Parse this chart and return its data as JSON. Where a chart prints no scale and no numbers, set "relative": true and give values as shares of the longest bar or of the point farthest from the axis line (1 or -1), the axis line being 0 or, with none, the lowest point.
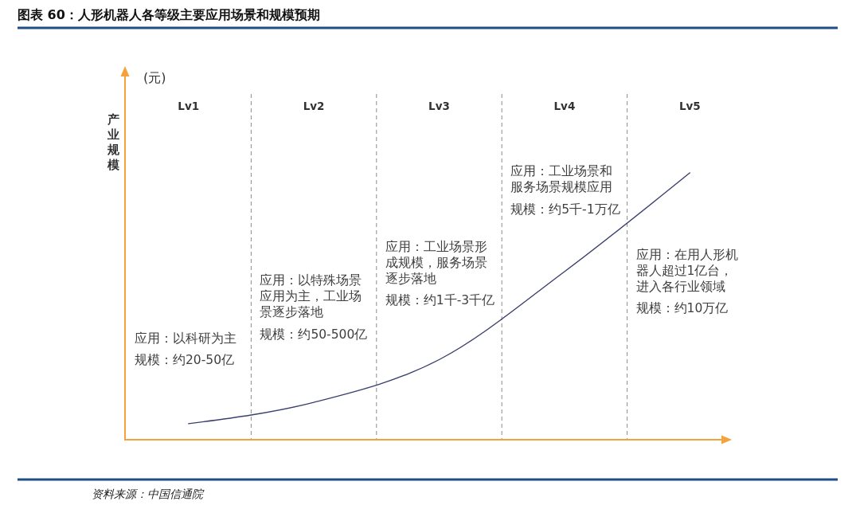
{
  "chart_data": {
    "type": "line",
    "title": "图表 60：人形机器人各等级主要应用场景和规模预期",
    "ylabel": "产业规模",
    "categories": [
      "Lv1",
      "Lv2",
      "Lv3",
      "Lv4",
      "Lv5"
    ],
    "series": [
      {
        "color": "#3b3f6e",
        "values": [
          0.06,
          0.14,
          0.3,
          0.63,
          1
        ]
      }
    ],
    "relative": true,
    "grid": "x",
    "annotations": [
      "(元)",
      "应用：以科研为主",
      "规模：约20-50亿",
      "应用：以特殊场景应用为主，工业场景逐步落地",
      "规模：约50-500亿",
      "应用：工业场景形成规模，服务场景逐步落地",
      "规模：约1千-3千亿",
      "应用：工业场景和服务场景规模应用",
      "规模：约5千-1万亿",
      "应用：在用人形机器人超过1亿台，进入各行业领域",
      "规模：约10万亿",
      "资料来源：中国信通院"
    ]
  }
}
